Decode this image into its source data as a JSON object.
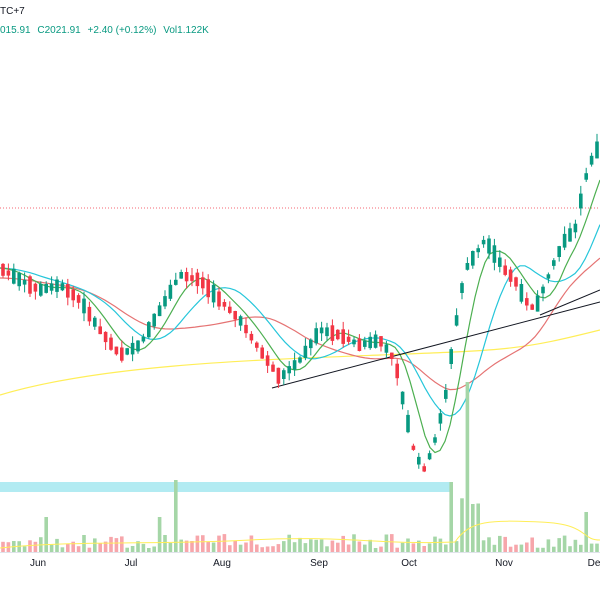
{
  "header": {
    "timezone_fragment": "TC+7"
  },
  "legend": {
    "open_fragment": "015.91",
    "close": "C2021.91",
    "change": "+2.40 (+0.12%)",
    "volume": "Vol1.122K"
  },
  "colors": {
    "up": "#089981",
    "down": "#f23645",
    "up_vol": "#a5d6a7",
    "down_vol": "#f7a6ab",
    "ma_fast": "#4caf50",
    "ma_mid": "#26c6da",
    "ma_slow": "#e57373",
    "ma_long": "#ffee58",
    "support_zone": "#b2ebf2",
    "trendline": "#131722",
    "ref_line": "#f23645"
  },
  "x_axis": {
    "labels": [
      "Jun",
      "Jul",
      "Aug",
      "Sep",
      "Oct",
      "Nov",
      "De"
    ]
  },
  "chart_data": {
    "type": "candlestick",
    "series": [
      {
        "name": "price"
      },
      {
        "name": "volume"
      }
    ]
  }
}
